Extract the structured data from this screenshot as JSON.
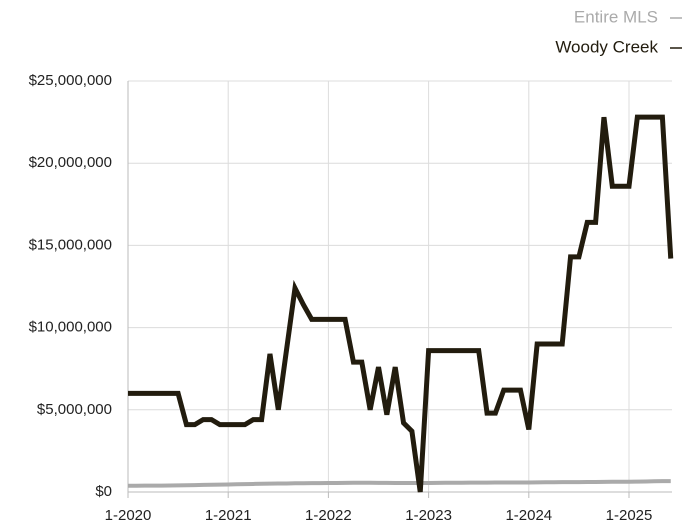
{
  "chart_data": {
    "type": "line",
    "x": [
      "1-2020",
      "2-2020",
      "3-2020",
      "4-2020",
      "5-2020",
      "6-2020",
      "7-2020",
      "8-2020",
      "9-2020",
      "10-2020",
      "11-2020",
      "12-2020",
      "1-2021",
      "2-2021",
      "3-2021",
      "4-2021",
      "5-2021",
      "6-2021",
      "7-2021",
      "8-2021",
      "9-2021",
      "10-2021",
      "11-2021",
      "12-2021",
      "1-2022",
      "2-2022",
      "3-2022",
      "4-2022",
      "5-2022",
      "6-2022",
      "7-2022",
      "8-2022",
      "9-2022",
      "10-2022",
      "11-2022",
      "12-2022",
      "1-2023",
      "2-2023",
      "3-2023",
      "4-2023",
      "5-2023",
      "6-2023",
      "7-2023",
      "8-2023",
      "9-2023",
      "10-2023",
      "11-2023",
      "12-2023",
      "1-2024",
      "2-2024",
      "3-2024",
      "4-2024",
      "5-2024",
      "6-2024",
      "7-2024",
      "8-2024",
      "9-2024",
      "10-2024",
      "11-2024",
      "12-2024",
      "1-2025",
      "2-2025",
      "3-2025",
      "4-2025",
      "5-2025",
      "6-2025"
    ],
    "series": [
      {
        "name": "Entire MLS",
        "color": "#aaaaaa",
        "values": [
          380000,
          380000,
          385000,
          390000,
          390000,
          395000,
          400000,
          410000,
          420000,
          430000,
          440000,
          450000,
          460000,
          470000,
          480000,
          490000,
          500000,
          510000,
          520000,
          520000,
          530000,
          530000,
          540000,
          540000,
          550000,
          550000,
          555000,
          560000,
          560000,
          560000,
          555000,
          555000,
          550000,
          550000,
          550000,
          550000,
          550000,
          555000,
          560000,
          560000,
          565000,
          570000,
          570000,
          570000,
          575000,
          575000,
          580000,
          580000,
          580000,
          585000,
          590000,
          590000,
          600000,
          600000,
          600000,
          605000,
          610000,
          615000,
          620000,
          620000,
          625000,
          630000,
          640000,
          650000,
          660000,
          660000
        ]
      },
      {
        "name": "Woody Creek",
        "color": "#221c0e",
        "values": [
          6000000,
          6000000,
          6000000,
          6000000,
          6000000,
          6000000,
          6000000,
          4100000,
          4100000,
          4400000,
          4400000,
          4100000,
          4100000,
          4100000,
          4100000,
          4400000,
          4400000,
          8400000,
          5000000,
          8700000,
          12400000,
          11400000,
          10500000,
          10500000,
          10500000,
          10500000,
          10500000,
          7900000,
          7900000,
          5000000,
          7600000,
          4700000,
          7600000,
          4200000,
          3700000,
          0,
          8600000,
          8600000,
          8600000,
          8600000,
          8600000,
          8600000,
          8600000,
          4800000,
          4800000,
          6200000,
          6200000,
          6200000,
          3800000,
          9000000,
          9000000,
          9000000,
          9000000,
          14300000,
          14300000,
          16400000,
          16400000,
          22800000,
          18600000,
          18600000,
          18600000,
          22800000,
          22800000,
          22800000,
          22800000,
          14200000
        ]
      }
    ],
    "xticks": [
      "1-2020",
      "1-2021",
      "1-2022",
      "1-2023",
      "1-2024",
      "1-2025"
    ],
    "ylim": [
      0,
      25000000
    ],
    "yticks": [
      {
        "value": 0,
        "label": "$0"
      },
      {
        "value": 5000000,
        "label": "$5,000,000"
      },
      {
        "value": 10000000,
        "label": "$10,000,000"
      },
      {
        "value": 15000000,
        "label": "$15,000,000"
      },
      {
        "value": 20000000,
        "label": "$20,000,000"
      },
      {
        "value": 25000000,
        "label": "$25,000,000"
      }
    ],
    "grid": true,
    "legend": "top-right"
  }
}
